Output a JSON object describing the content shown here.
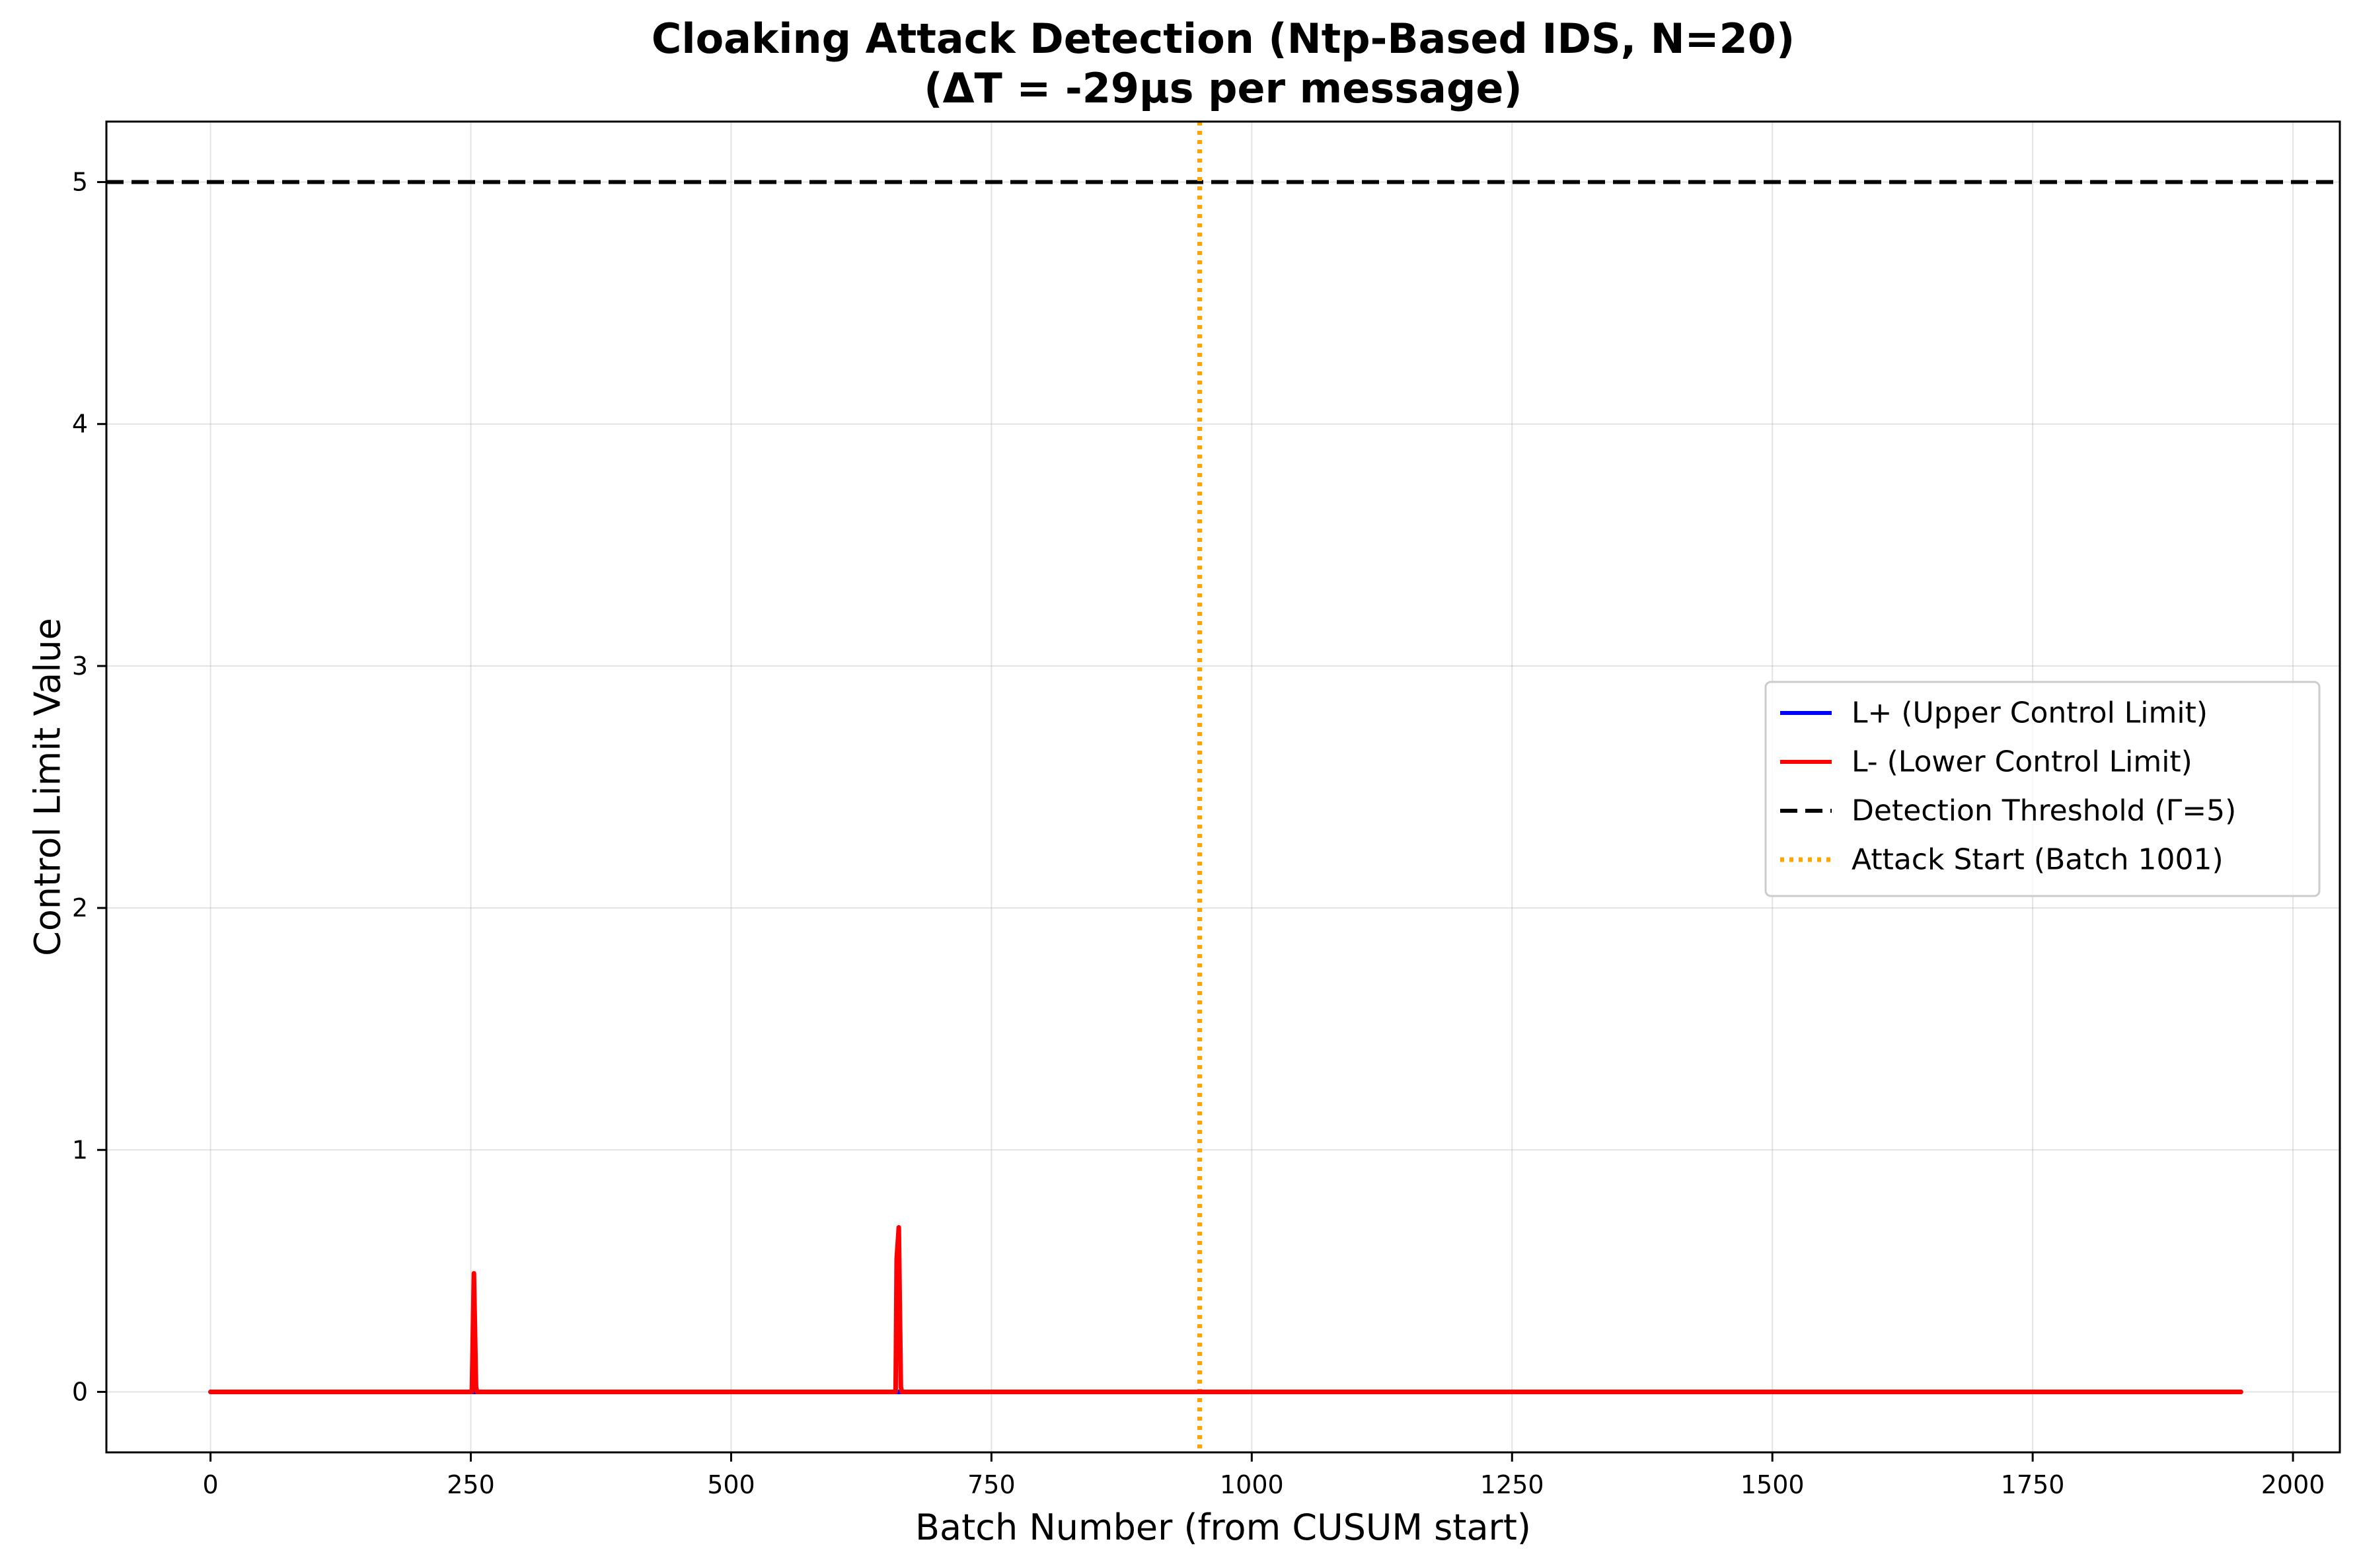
{
  "chart_data": {
    "type": "line",
    "title": "Cloaking Attack Detection (Ntp-Based IDS, N=20)",
    "subtitle": "(ΔT = -29μs per message)",
    "xlabel": "Batch Number (from CUSUM start)",
    "ylabel": "Control Limit Value",
    "xlim": [
      -100,
      2045
    ],
    "ylim": [
      -0.25,
      5.25
    ],
    "xticks": [
      0,
      250,
      500,
      750,
      1000,
      1250,
      1500,
      1750,
      2000
    ],
    "yticks": [
      0,
      1,
      2,
      3,
      4,
      5
    ],
    "grid": true,
    "legend_position": "center-right",
    "series": [
      {
        "name": "L+ (Upper Control Limit)",
        "color": "#0000ff",
        "style": "solid",
        "points": [
          [
            0,
            0
          ],
          [
            1950,
            0
          ]
        ]
      },
      {
        "name": "L- (Lower Control Limit)",
        "color": "#ff0000",
        "style": "solid",
        "points": [
          [
            0,
            0
          ],
          [
            251,
            0
          ],
          [
            253,
            0.49
          ],
          [
            255,
            0.02
          ],
          [
            256,
            0
          ],
          [
            658,
            0
          ],
          [
            659,
            0.55
          ],
          [
            661,
            0.68
          ],
          [
            663,
            0.02
          ],
          [
            664,
            0
          ],
          [
            1950,
            0
          ]
        ]
      }
    ],
    "reference_lines": [
      {
        "name": "Detection Threshold (Γ=5)",
        "orientation": "horizontal",
        "value": 5,
        "color": "#000000",
        "style": "dashed"
      },
      {
        "name": "Attack Start (Batch 1001)",
        "orientation": "vertical",
        "value": 950,
        "color": "#ffa500",
        "style": "dotted"
      }
    ]
  }
}
